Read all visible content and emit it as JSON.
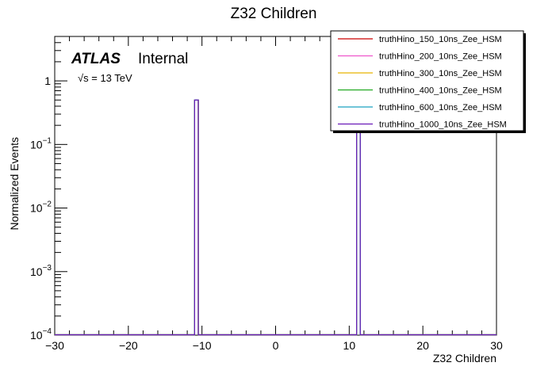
{
  "chart_data": {
    "type": "histogram",
    "title": "Z32 Children",
    "xlabel": "Z32 Children",
    "ylabel": "Normalized Events",
    "xlim": [
      -30,
      30
    ],
    "ylim": [
      0.0001,
      5
    ],
    "yscale": "log",
    "x_ticks": [
      -30,
      -20,
      -10,
      0,
      10,
      20,
      30
    ],
    "x_tick_labels": [
      "−30",
      "−20",
      "−10",
      "0",
      "10",
      "20",
      "30"
    ],
    "y_ticks": [
      0.0001,
      0.001,
      0.01,
      0.1,
      1
    ],
    "y_tick_labels": [
      {
        "base": "10",
        "exp": "−4"
      },
      {
        "base": "10",
        "exp": "−3"
      },
      {
        "base": "10",
        "exp": "−2"
      },
      {
        "base": "10",
        "exp": "−1"
      },
      {
        "base": "1",
        "exp": ""
      }
    ],
    "bin_edges_bars": [
      {
        "x0": -11,
        "x1": -10.5,
        "value": 0.5
      },
      {
        "x0": 11,
        "x1": 11.5,
        "value": 0.5
      }
    ],
    "legend_position": "top-right",
    "atlas_label": "ATLAS",
    "atlas_sublabel": "Internal",
    "energy_label": "√s = 13 TeV",
    "series": [
      {
        "name": "truthHino_150_10ns_Zee_HSM",
        "color": "#cc0000"
      },
      {
        "name": "truthHino_200_10ns_Zee_HSM",
        "color": "#ee55cc"
      },
      {
        "name": "truthHino_300_10ns_Zee_HSM",
        "color": "#e8b400"
      },
      {
        "name": "truthHino_400_10ns_Zee_HSM",
        "color": "#22aa22"
      },
      {
        "name": "truthHino_600_10ns_Zee_HSM",
        "color": "#1aa0c0"
      },
      {
        "name": "truthHino_1000_10ns_Zee_HSM",
        "color": "#6a1ab8"
      }
    ]
  }
}
